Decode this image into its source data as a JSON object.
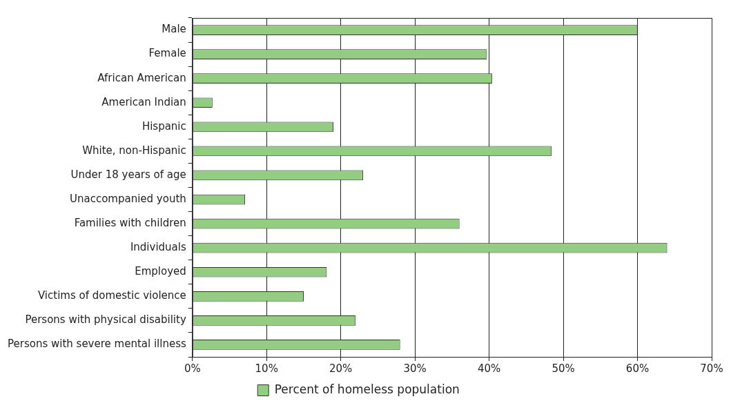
{
  "chart_data": {
    "type": "bar",
    "orientation": "horizontal",
    "categories": [
      "Male",
      "Female",
      "African American",
      "American Indian",
      "Hispanic",
      "White, non-Hispanic",
      "Under 18 years of age",
      "Unaccompanied youth",
      "Families with children",
      "Individuals",
      "Employed",
      "Victims of domestic violence",
      "Persons with physical disability",
      "Persons with severe mental illness"
    ],
    "series": [
      {
        "name": "Percent of homeless population",
        "color": "#92cd82",
        "values": [
          60,
          39.7,
          40.4,
          2.7,
          19,
          48.4,
          23,
          7.1,
          36,
          64,
          18.1,
          15,
          22,
          28
        ]
      }
    ],
    "xlim": [
      0,
      70
    ],
    "xticks": [
      {
        "value": 0,
        "label": "0%"
      },
      {
        "value": 10,
        "label": "10%"
      },
      {
        "value": 20,
        "label": "20%"
      },
      {
        "value": 30,
        "label": "30%"
      },
      {
        "value": 40,
        "label": "40%"
      },
      {
        "value": 50,
        "label": "50%"
      },
      {
        "value": 60,
        "label": "60%"
      },
      {
        "value": 70,
        "label": "70%"
      }
    ],
    "grid": "x",
    "legend": "bottom"
  }
}
